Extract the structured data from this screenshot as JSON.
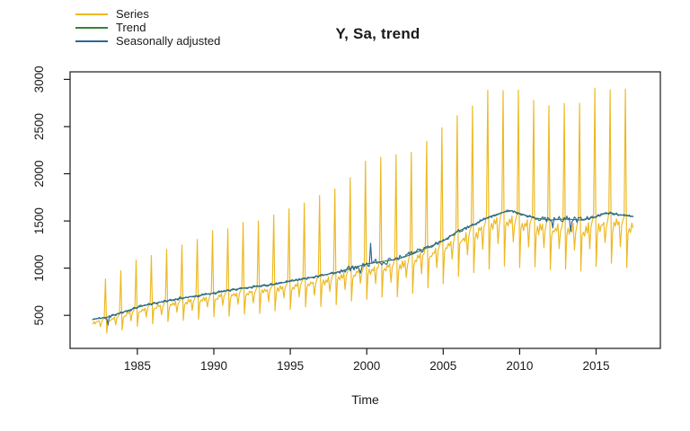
{
  "chart_data": {
    "type": "line",
    "title": "Y, Sa, trend",
    "xlabel": "Time",
    "ylabel": "",
    "x_ticks": [
      1985,
      1990,
      1995,
      2000,
      2005,
      2010,
      2015
    ],
    "y_ticks": [
      500,
      1000,
      1500,
      2000,
      2500,
      3000
    ],
    "xlim": [
      1980.6,
      2019.2
    ],
    "ylim": [
      150,
      3080
    ],
    "x_start": 1982.0833,
    "x_end": 2017.4167,
    "frequency": 12,
    "grid": "off",
    "legend_position": "top-left",
    "axis_color": "#1a1a1a",
    "background": "#ffffff",
    "legend": [
      {
        "label": "Series",
        "color": "#EDB820"
      },
      {
        "label": "Trend",
        "color": "#38813C"
      },
      {
        "label": "Seasonally adjusted",
        "color": "#2D6795"
      }
    ],
    "trend_anchors": {
      "t": [
        1982,
        1983,
        1984,
        1985,
        1986,
        1987,
        1988,
        1989,
        1990,
        1991,
        1992,
        1993,
        1994,
        1995,
        1996,
        1997,
        1998,
        1999,
        2000,
        2001,
        2002,
        2003,
        2004,
        2005,
        2006,
        2007,
        2008,
        2009,
        2009.5,
        2010,
        2011,
        2012,
        2013,
        2014,
        2015,
        2015.5,
        2016,
        2016.5,
        2017,
        2017.42
      ],
      "v": [
        455,
        480,
        530,
        585,
        625,
        655,
        685,
        710,
        735,
        765,
        790,
        810,
        830,
        860,
        890,
        920,
        955,
        1000,
        1045,
        1070,
        1095,
        1150,
        1220,
        1290,
        1395,
        1460,
        1545,
        1595,
        1607,
        1580,
        1530,
        1510,
        1520,
        1510,
        1545,
        1575,
        1585,
        1565,
        1555,
        1548
      ]
    },
    "seasonal": {
      "monthly_factors": [
        0.65,
        0.89,
        0.93,
        0.9,
        0.95,
        0.92,
        0.96,
        0.8,
        0.93,
        0.96,
        1.01,
        1.85
      ],
      "dec_ratio_t": [
        1982,
        1988,
        1994,
        1997,
        2000,
        2002,
        2003,
        2005,
        2007,
        2009,
        2011,
        2013,
        2015,
        2016,
        2017.4
      ],
      "dec_ratio_v": [
        1.82,
        1.85,
        1.9,
        1.95,
        2.02,
        2.06,
        1.98,
        1.9,
        1.86,
        1.82,
        1.8,
        1.82,
        1.87,
        1.84,
        1.85
      ]
    },
    "sa_noise": {
      "seed": 42,
      "amp_t": [
        1982,
        1998,
        1999,
        2003,
        2004,
        2011,
        2012,
        2014,
        2015,
        2017.4
      ],
      "amp_v": [
        14,
        14,
        38,
        38,
        18,
        18,
        32,
        32,
        14,
        14
      ],
      "events": [
        {
          "t": 1983.08,
          "delta": -75
        },
        {
          "t": 1999.58,
          "delta": -85
        },
        {
          "t": 2000.25,
          "delta": 175
        },
        {
          "t": 2012.17,
          "delta": -95
        },
        {
          "t": 2013.33,
          "delta": -130
        }
      ]
    },
    "series_noise_pct": 0.022
  }
}
